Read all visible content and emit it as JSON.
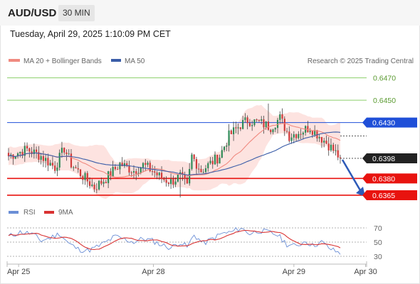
{
  "header": {
    "symbol": "AUD/USD",
    "timeframe": "30 MIN",
    "datetime": "Tuesday, April 29, 2025 1:10:09 PM CET"
  },
  "legend": {
    "ma20": "MA 20 + Bollinger Bands",
    "ma50": "MA 50",
    "credit": "Research © 2025 Trading Central",
    "rsi": "RSI",
    "rsi_ma": "9MA"
  },
  "colors": {
    "candle_up": "#2e8b57",
    "candle_down": "#d13b3b",
    "bollinger_fill": "#fcd9d6",
    "ma20": "#f08a80",
    "ma50": "#3a5da8",
    "resistance_line": "#8ccf6a",
    "pivot_line": "#1f4fd8",
    "support_line": "#e8130f",
    "current_price": "#222222",
    "rsi_line": "#6b8fd6",
    "rsi_ma_line": "#d93232"
  },
  "chart_data": [
    {
      "type": "candlestick",
      "title": "AUD/USD",
      "timeframe": "30 MIN",
      "ylim": [
        0.6358,
        0.6478
      ],
      "x_tick_labels": [
        "Apr 25",
        "Apr 28",
        "Apr 29",
        "Apr 30"
      ],
      "x_tick_positions": [
        6,
        53,
        102,
        127
      ],
      "candle_count": 144,
      "levels": [
        {
          "value": 0.647,
          "label": "0.6470",
          "kind": "resistance"
        },
        {
          "value": 0.645,
          "label": "0.6450",
          "kind": "resistance"
        },
        {
          "value": 0.643,
          "label": "0.6430",
          "kind": "pivot"
        },
        {
          "value": 0.6398,
          "label": "0.6398",
          "kind": "current"
        },
        {
          "value": 0.638,
          "label": "0.6380",
          "kind": "support"
        },
        {
          "value": 0.6365,
          "label": "0.6365",
          "kind": "support"
        }
      ],
      "close_anchors": [
        [
          0,
          0.64
        ],
        [
          8,
          0.6406
        ],
        [
          14,
          0.64
        ],
        [
          20,
          0.639
        ],
        [
          24,
          0.6407
        ],
        [
          27,
          0.6393
        ],
        [
          32,
          0.6382
        ],
        [
          37,
          0.6372
        ],
        [
          42,
          0.638
        ],
        [
          48,
          0.6393
        ],
        [
          54,
          0.6387
        ],
        [
          58,
          0.6392
        ],
        [
          62,
          0.6387
        ],
        [
          66,
          0.638
        ],
        [
          70,
          0.6377
        ],
        [
          74,
          0.6382
        ],
        [
          77,
          0.6372
        ],
        [
          79,
          0.64
        ],
        [
          83,
          0.6387
        ],
        [
          88,
          0.6395
        ],
        [
          91,
          0.64
        ],
        [
          95,
          0.6418
        ],
        [
          100,
          0.6428
        ],
        [
          103,
          0.6432
        ],
        [
          108,
          0.643
        ],
        [
          113,
          0.6426
        ],
        [
          117,
          0.6434
        ],
        [
          121,
          0.6418
        ],
        [
          126,
          0.6422
        ],
        [
          130,
          0.6426
        ],
        [
          134,
          0.6418
        ],
        [
          138,
          0.641
        ],
        [
          143,
          0.6398
        ]
      ],
      "series": [
        {
          "name": "MA 20 + Bollinger Bands",
          "kind": "ma20_with_bands"
        },
        {
          "name": "MA 50",
          "kind": "ma50"
        }
      ],
      "forecast": {
        "from": 0.6398,
        "to": 0.6365
      }
    },
    {
      "type": "line",
      "title": "RSI",
      "ylim": [
        25,
        80
      ],
      "yticks": [
        70,
        50,
        30
      ],
      "rsi_anchors": [
        [
          0,
          58
        ],
        [
          5,
          64
        ],
        [
          10,
          62
        ],
        [
          14,
          52
        ],
        [
          18,
          56
        ],
        [
          22,
          62
        ],
        [
          26,
          48
        ],
        [
          30,
          40
        ],
        [
          34,
          38
        ],
        [
          38,
          43
        ],
        [
          42,
          50
        ],
        [
          46,
          58
        ],
        [
          50,
          54
        ],
        [
          54,
          50
        ],
        [
          58,
          55
        ],
        [
          62,
          52
        ],
        [
          66,
          46
        ],
        [
          70,
          42
        ],
        [
          74,
          50
        ],
        [
          77,
          43
        ],
        [
          80,
          60
        ],
        [
          84,
          48
        ],
        [
          88,
          55
        ],
        [
          92,
          62
        ],
        [
          96,
          64
        ],
        [
          100,
          70
        ],
        [
          104,
          62
        ],
        [
          108,
          66
        ],
        [
          112,
          64
        ],
        [
          116,
          60
        ],
        [
          120,
          47
        ],
        [
          124,
          44
        ],
        [
          128,
          52
        ],
        [
          131,
          45
        ],
        [
          135,
          50
        ],
        [
          139,
          40
        ],
        [
          143,
          34
        ]
      ],
      "series": [
        {
          "name": "RSI",
          "kind": "rsi"
        },
        {
          "name": "9MA",
          "kind": "rsi_ma"
        }
      ]
    }
  ]
}
